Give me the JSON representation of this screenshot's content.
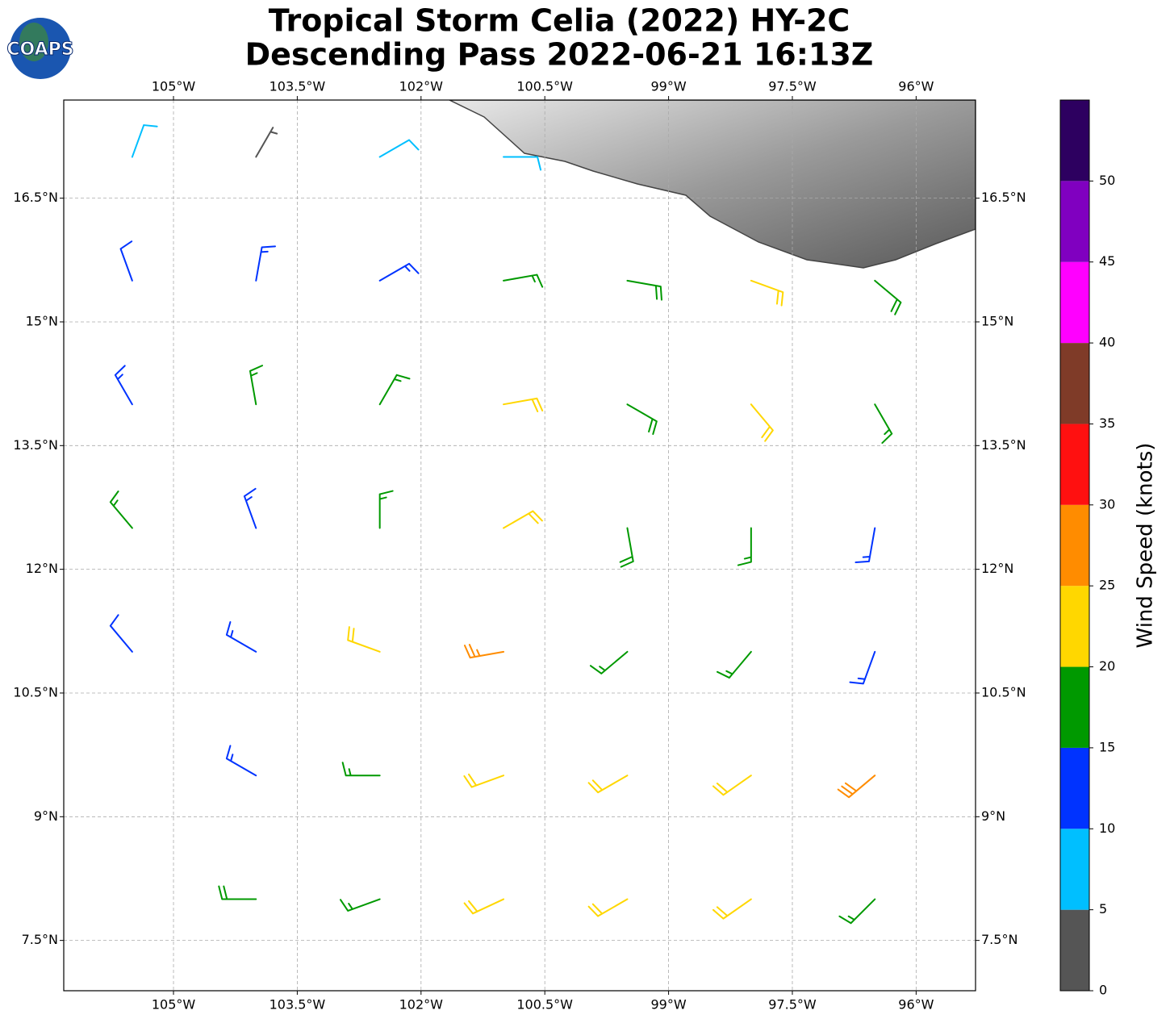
{
  "chart_data": {
    "type": "wind-barb-map",
    "title": [
      "Tropical Storm Celia (2022) HY-2C",
      "Descending Pass 2022-06-21 16:13Z"
    ],
    "logo": "COAPS",
    "xlim": [
      -106.33,
      -95.28
    ],
    "ylim": [
      6.89,
      17.69
    ],
    "xticks": [
      {
        "value": -105,
        "label": "105°W"
      },
      {
        "value": -103.5,
        "label": "103.5°W"
      },
      {
        "value": -102,
        "label": "102°W"
      },
      {
        "value": -100.5,
        "label": "100.5°W"
      },
      {
        "value": -99,
        "label": "99°W"
      },
      {
        "value": -97.5,
        "label": "97.5°W"
      },
      {
        "value": -96,
        "label": "96°W"
      }
    ],
    "yticks": [
      {
        "value": 7.5,
        "label": "7.5°N"
      },
      {
        "value": 9,
        "label": "9°N"
      },
      {
        "value": 10.5,
        "label": "10.5°N"
      },
      {
        "value": 12,
        "label": "12°N"
      },
      {
        "value": 13.5,
        "label": "13.5°N"
      },
      {
        "value": 15,
        "label": "15°N"
      },
      {
        "value": 16.5,
        "label": "16.5°N"
      }
    ],
    "grid": true,
    "colorbar": {
      "label": "Wind Speed (knots)",
      "ylim": [
        0,
        55
      ],
      "ticks": [
        0,
        5,
        10,
        15,
        20,
        25,
        30,
        35,
        40,
        45,
        50
      ],
      "colors": [
        "#555555",
        "#00bfff",
        "#0033ff",
        "#009900",
        "#ffd700",
        "#ff8c00",
        "#ff1010",
        "#7f3b28",
        "#ff00ff",
        "#8000c0",
        "#2d0060"
      ]
    },
    "wind": {
      "points": [
        [
          -105.5,
          17,
          8,
          20
        ],
        [
          -104,
          17,
          3,
          30
        ],
        [
          -102.5,
          17,
          8,
          60
        ],
        [
          -101,
          17,
          9,
          90
        ],
        [
          -105.5,
          15.5,
          12,
          340
        ],
        [
          -104,
          15.5,
          14,
          10
        ],
        [
          -102.5,
          15.5,
          13,
          60
        ],
        [
          -101,
          15.5,
          17,
          80
        ],
        [
          -99.5,
          15.5,
          18,
          100
        ],
        [
          -98,
          15.5,
          21,
          110
        ],
        [
          -96.5,
          15.5,
          18,
          130
        ],
        [
          -105.5,
          14,
          13,
          330
        ],
        [
          -104,
          14,
          16,
          350
        ],
        [
          -102.5,
          14,
          17,
          30
        ],
        [
          -101,
          14,
          20,
          80
        ],
        [
          -99.5,
          14,
          18,
          120
        ],
        [
          -98,
          14,
          21,
          140
        ],
        [
          -96.5,
          14,
          17,
          150
        ],
        [
          -105.5,
          12.5,
          17,
          320
        ],
        [
          -104,
          12.5,
          14,
          340
        ],
        [
          -102.5,
          12.5,
          17,
          360
        ],
        [
          -101,
          12.5,
          22,
          60
        ],
        [
          -99.5,
          12.5,
          19,
          170
        ],
        [
          -98,
          12.5,
          17,
          180
        ],
        [
          -96.5,
          12.5,
          13,
          190
        ],
        [
          -105.5,
          11,
          12,
          320
        ],
        [
          -104,
          11,
          13,
          300
        ],
        [
          -102.5,
          11,
          21,
          290
        ],
        [
          -101,
          11,
          26,
          260
        ],
        [
          -99.5,
          11,
          17,
          230
        ],
        [
          -98,
          11,
          17,
          220
        ],
        [
          -96.5,
          11,
          14,
          200
        ],
        [
          -104,
          9.5,
          14,
          300
        ],
        [
          -102.5,
          9.5,
          17,
          270
        ],
        [
          -101,
          9.5,
          21,
          250
        ],
        [
          -99.5,
          9.5,
          22,
          240
        ],
        [
          -98,
          9.5,
          22,
          235
        ],
        [
          -96.5,
          9.5,
          28,
          230
        ],
        [
          -104,
          8,
          18,
          270
        ],
        [
          -102.5,
          8,
          17,
          250
        ],
        [
          -101,
          8,
          22,
          245
        ],
        [
          -99.5,
          8,
          21,
          240
        ],
        [
          -98,
          8,
          22,
          235
        ],
        [
          -96.5,
          8,
          17,
          225
        ]
      ]
    }
  }
}
